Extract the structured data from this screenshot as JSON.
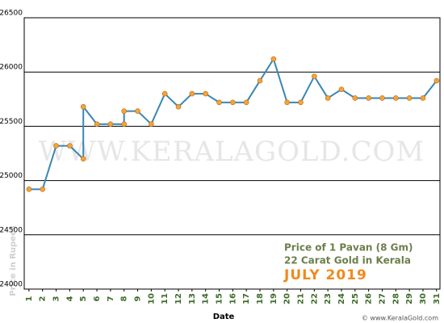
{
  "chart_data": {
    "type": "line",
    "watermark": "WWW.KERALAGOLD.COM",
    "caption_lines": [
      "Price of 1 Pavan (8 Gm)",
      "22 Carat Gold in Kerala"
    ],
    "caption_month": "JULY 2019",
    "copyright": "© www.KeralaGold.com",
    "x_label": "Date",
    "y_label": "Price in Rupees",
    "x": [
      1,
      2,
      3,
      4,
      5,
      5,
      6,
      7,
      8,
      8,
      9,
      10,
      11,
      12,
      13,
      14,
      15,
      16,
      17,
      18,
      19,
      20,
      21,
      22,
      23,
      24,
      25,
      26,
      27,
      28,
      29,
      30,
      31
    ],
    "series": [
      {
        "color": "#3a86b4",
        "marker_color": "#f5a33a",
        "values": [
          24920,
          24920,
          25320,
          25320,
          25200,
          25680,
          25520,
          25520,
          25520,
          25640,
          25640,
          25520,
          25800,
          25680,
          25800,
          25800,
          25720,
          25720,
          25720,
          25920,
          26120,
          25720,
          25720,
          25960,
          25760,
          25840,
          25760,
          25760,
          25760,
          25760,
          25760,
          25760,
          25920
        ]
      }
    ],
    "xlim": [
      0.65,
      31.25
    ],
    "xticks": [
      1,
      2,
      3,
      4,
      5,
      6,
      7,
      8,
      9,
      10,
      11,
      12,
      13,
      14,
      15,
      16,
      17,
      18,
      19,
      20,
      21,
      22,
      23,
      24,
      25,
      26,
      27,
      28,
      29,
      30,
      31
    ],
    "ylim": [
      24000,
      26500
    ],
    "yticks": [
      24000,
      24500,
      25000,
      25500,
      26000,
      26500
    ],
    "grid": true
  }
}
